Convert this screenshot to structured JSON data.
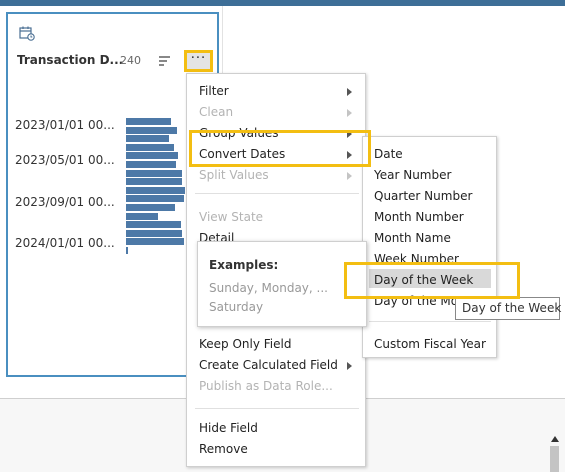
{
  "card": {
    "title": "Transaction D...",
    "count": "240",
    "more_label": "···",
    "icon": "calendar-icon"
  },
  "chart_data": {
    "type": "bar",
    "orientation": "horizontal",
    "tick_labels": [
      "2023/01/01 00...",
      "2023/05/01 00...",
      "2023/09/01 00...",
      "2024/01/01 00..."
    ],
    "values": [
      0.73,
      0.82,
      0.69,
      0.78,
      0.84,
      0.81,
      0.9,
      0.91,
      0.95,
      0.93,
      0.79,
      0.51,
      0.89,
      0.9,
      0.94,
      0.03
    ],
    "xlim": [
      0,
      1
    ]
  },
  "menu": {
    "items": [
      {
        "label": "Filter",
        "disabled": false,
        "submenu": true
      },
      {
        "label": "Clean",
        "disabled": true,
        "submenu": true
      },
      {
        "label": "Group Values",
        "disabled": false,
        "submenu": true
      },
      {
        "label": "Convert Dates",
        "disabled": false,
        "submenu": true
      },
      {
        "label": "Split Values",
        "disabled": true,
        "submenu": true
      },
      {
        "label": "View State",
        "disabled": true,
        "submenu": false
      },
      {
        "label": "Detail",
        "disabled": false,
        "submenu": false
      },
      {
        "label": "Keep Only Field",
        "disabled": false,
        "submenu": false
      },
      {
        "label": "Create Calculated Field",
        "disabled": false,
        "submenu": true
      },
      {
        "label": "Publish as Data Role...",
        "disabled": true,
        "submenu": false
      },
      {
        "label": "Hide Field",
        "disabled": false,
        "submenu": false
      },
      {
        "label": "Remove",
        "disabled": false,
        "submenu": false
      }
    ]
  },
  "submenu": {
    "items": [
      {
        "label": "Date"
      },
      {
        "label": "Year Number"
      },
      {
        "label": "Quarter Number"
      },
      {
        "label": "Month Number"
      },
      {
        "label": "Month Name"
      },
      {
        "label": "Week Number"
      },
      {
        "label": "Day of the Week"
      },
      {
        "label": "Day of the Mo"
      },
      {
        "label": "Custom Fiscal Year"
      }
    ],
    "selected": "Day of the Week"
  },
  "examples": {
    "title": "Examples:",
    "text": "Sunday, Monday, ... Saturday"
  },
  "tooltip": {
    "text": "Day of the Week"
  },
  "colors": {
    "highlight": "#f3be12",
    "bar": "#4d79a7",
    "card_border": "#4a8fc0"
  }
}
